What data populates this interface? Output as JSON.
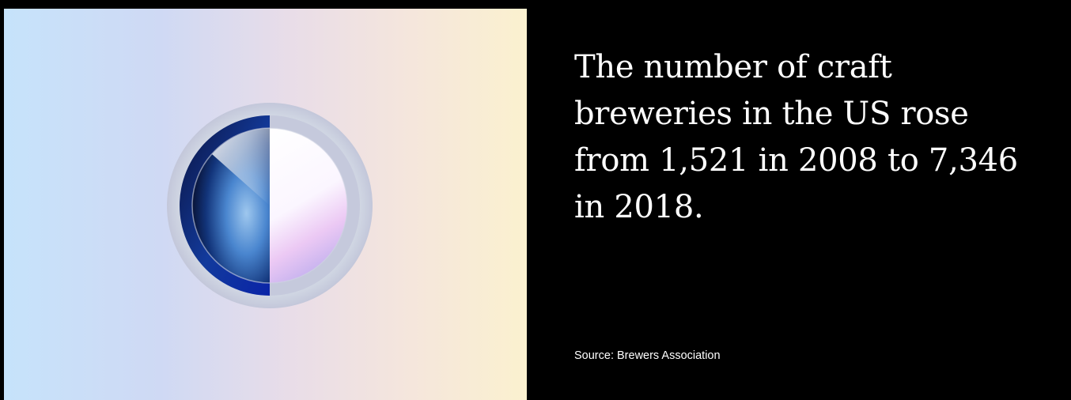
{
  "headline": "The number of craft breweries in the US rose from 1,521 in 2008 to 7,346 in 2018.",
  "source": "Source: Brewers Association",
  "illustration": {
    "icon": "ring-dial-icon",
    "colors": {
      "panel_left": "#c6e3fb",
      "panel_right": "#fbf1cf",
      "outer_ring": "#c9cfdd",
      "accent_arc": "#0b2a9e",
      "text_panel": "#000000",
      "text": "#ffffff"
    }
  }
}
